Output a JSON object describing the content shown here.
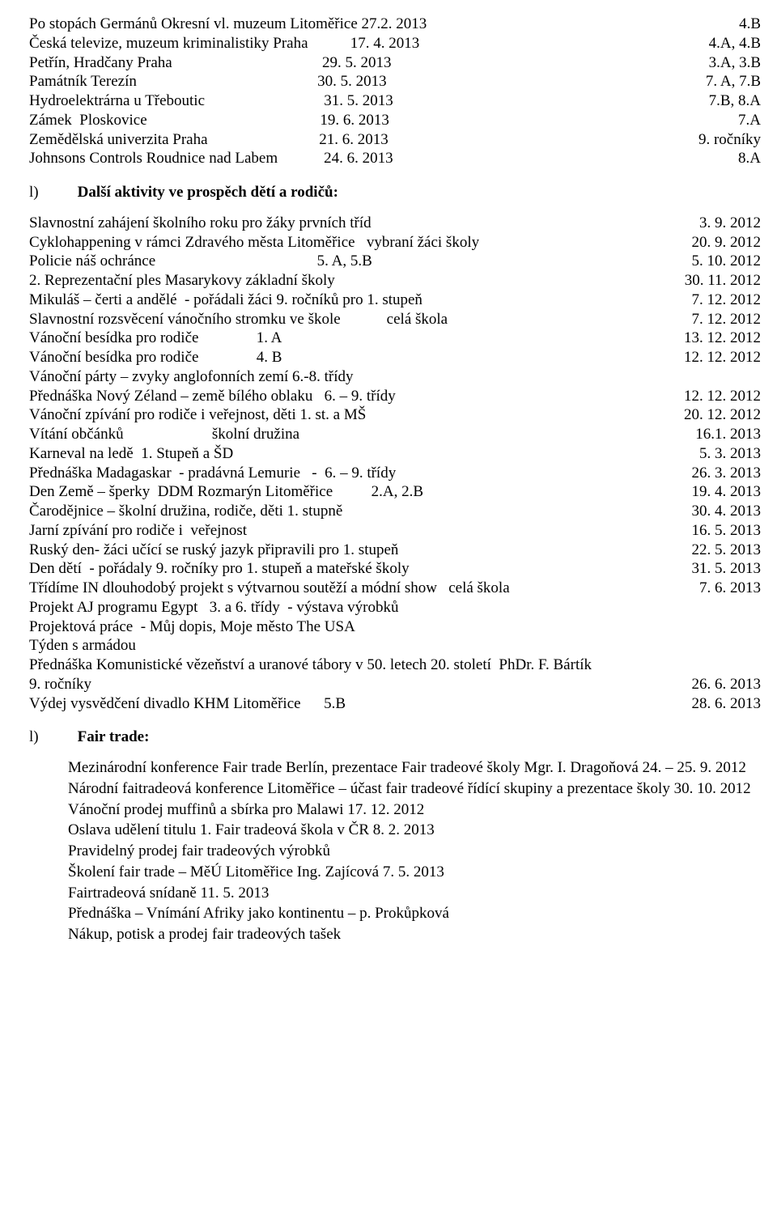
{
  "block1": [
    {
      "left": "Po stopách Germánů Okresní vl. muzeum Litoměřice 27.2. 2013",
      "right": "4.B"
    },
    {
      "left": "Česká televize, muzeum kriminalistiky Praha           17. 4. 2013",
      "right": "4.A, 4.B"
    },
    {
      "left": "Petřín, Hradčany Praha                                       29. 5. 2013",
      "right": "3.A, 3.B"
    },
    {
      "left": "Památník Terezín                                               30. 5. 2013",
      "right": "7. A, 7.B"
    },
    {
      "left": "Hydroelektrárna u Třeboutic                               31. 5. 2013",
      "right": "7.B, 8.A"
    },
    {
      "left": "Zámek  Ploskovice                                             19. 6. 2013",
      "right": "7.A"
    },
    {
      "left": "Zemědělská univerzita Praha                             21. 6. 2013",
      "right": "9. ročníky"
    },
    {
      "left": "Johnsons Controls Roudnice nad Labem            24. 6. 2013",
      "right": "8.A"
    }
  ],
  "heading1": {
    "letter": "l)",
    "title": "Další aktivity ve prospěch dětí a rodičů:"
  },
  "block2": [
    {
      "left": "Slavnostní zahájení školního roku pro žáky prvních tříd",
      "right": "3. 9. 2012"
    },
    {
      "left": "Cyklohappening v rámci Zdravého města Litoměřice   vybraní žáci školy",
      "right": "20. 9. 2012"
    },
    {
      "left": "Policie náš ochránce                                          5. A, 5.B",
      "right": "5. 10. 2012"
    },
    {
      "left": "2. Reprezentační ples Masarykovy základní školy",
      "right": "30. 11. 2012"
    },
    {
      "left": "Mikuláš – čerti a andělé  - pořádali žáci 9. ročníků pro 1. stupeň",
      "right": "7. 12. 2012"
    },
    {
      "left": "Slavnostní rozsvěcení vánočního stromku ve škole            celá škola",
      "right": "7. 12. 2012"
    },
    {
      "left": "Vánoční besídka pro rodiče               1. A",
      "right": "13. 12. 2012"
    },
    {
      "left": "Vánoční besídka pro rodiče               4. B",
      "right": "12. 12. 2012"
    },
    {
      "left": "Vánoční párty – zvyky anglofonních zemí 6.-8. třídy",
      "right": ""
    },
    {
      "left": "Přednáška Nový Zéland – země bílého oblaku   6. – 9. třídy",
      "right": "12. 12. 2012"
    },
    {
      "left": "Vánoční zpívání pro rodiče i veřejnost, děti 1. st. a MŠ",
      "right": "20. 12. 2012"
    },
    {
      "left": "Vítání občánků                       školní družina",
      "right": "16.1. 2013"
    },
    {
      "left": "Karneval na ledě  1. Stupeň a ŠD",
      "right": "5. 3. 2013"
    },
    {
      "left": "Přednáška Madagaskar  - pradávná Lemurie   -  6. – 9. třídy",
      "right": "26. 3. 2013"
    },
    {
      "left": "Den Země – šperky  DDM Rozmarýn Litoměřice          2.A, 2.B",
      "right": "19. 4. 2013"
    },
    {
      "left": "Čarodějnice – školní družina, rodiče, děti 1. stupně",
      "right": "30. 4.  2013"
    },
    {
      "left": "Jarní zpívání pro rodiče i  veřejnost",
      "right": "16. 5.  2013"
    },
    {
      "left": "Ruský den- žáci učící se ruský jazyk připravili pro 1. stupeň",
      "right": "22. 5. 2013"
    },
    {
      "left": "Den dětí  - pořádaly 9. ročníky pro 1. stupeň a mateřské školy",
      "right": "31. 5. 2013"
    },
    {
      "left": "Třídíme IN dlouhodobý projekt s výtvarnou soutěží a módní show   celá škola",
      "right": "7. 6. 2013"
    },
    {
      "left": "Projekt AJ programu Egypt   3. a 6. třídy  - výstava výrobků",
      "right": ""
    },
    {
      "left": "Projektová práce  - Můj dopis, Moje město The USA",
      "right": ""
    },
    {
      "left": "Týden s armádou",
      "right": ""
    },
    {
      "left": "Přednáška Komunistické vězeňství a uranové tábory v 50. letech 20. století  PhDr. F. Bártík",
      "right": ""
    },
    {
      "left": "9. ročníky",
      "right": "26. 6. 2013"
    },
    {
      "left": "Výdej vysvědčení divadlo KHM Litoměřice      5.B",
      "right": "28. 6. 2013"
    }
  ],
  "heading2": {
    "letter": "l)",
    "title": "Fair trade:"
  },
  "block3": [
    "Mezinárodní konference Fair trade Berlín, prezentace Fair tradeové školy Mgr. I. Dragoňová 24.  – 25. 9.  2012",
    "Národní  faitradeová konference Litoměřice – účast   fair tradeové řídící skupiny a prezentace školy 30. 10.  2012",
    "Vánoční prodej muffinů a sbírka pro Malawi  17. 12. 2012",
    "Oslava udělení titulu 1. Fair tradeová škola v ČR  8. 2. 2013",
    "Pravidelný prodej fair tradeových výrobků",
    "Školení fair trade – MěÚ Litoměřice Ing. Zajícová 7. 5. 2013",
    "Fairtradeová snídaně 11. 5. 2013",
    "Přednáška – Vnímání Afriky jako kontinentu – p. Prokůpková",
    "Nákup, potisk a prodej fair tradeových tašek"
  ]
}
